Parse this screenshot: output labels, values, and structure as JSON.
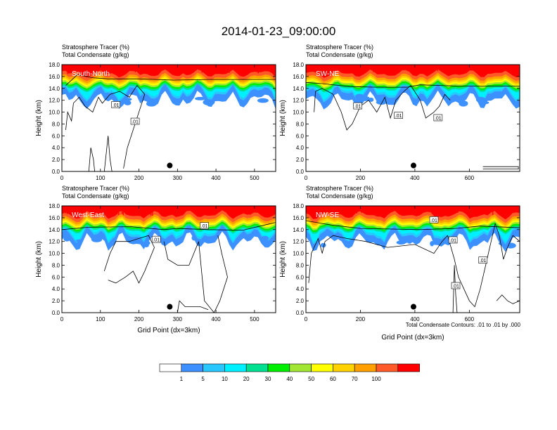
{
  "title": "2014-01-23_09:00:00",
  "colors": {
    "levels": [
      "#ffffff",
      "#3c90ff",
      "#28c8ff",
      "#00f0ff",
      "#00e090",
      "#00ef00",
      "#a0e632",
      "#ffff00",
      "#ffd200",
      "#ffa000",
      "#ff5a28",
      "#ff0000"
    ],
    "contour": "#000000",
    "marker": "#000000"
  },
  "colorbar": {
    "labels": [
      "1",
      "5",
      "10",
      "20",
      "30",
      "40",
      "50",
      "60",
      "70",
      "100"
    ]
  },
  "footer_note": "Total Condensate Contours: .01 to .01 by .000",
  "chart_data": [
    {
      "type": "contour",
      "panel_label": "South-North",
      "title_line1": "Stratosphere Tracer   (%)",
      "title_line2": "Total Condensate   (g/kg)",
      "ylabel": "Height (km)",
      "xlabel": "",
      "xlim": [
        0,
        555
      ],
      "ylim": [
        0,
        18
      ],
      "xticks": [
        "0",
        "100",
        "200",
        "300",
        "400",
        "500"
      ],
      "yticks": [
        "0.0",
        "2.0",
        "4.0",
        "6.0",
        "8.0",
        "10.0",
        "12.0",
        "14.0",
        "16.0",
        "18.0"
      ],
      "contour_labels": [
        ".01",
        ".01"
      ],
      "marker_x": 280,
      "marker_y": 1.0
    },
    {
      "type": "contour",
      "panel_label": "SW-NE",
      "title_line1": "Stratosphere Tracer   (%)",
      "title_line2": "Total Condensate   (g/kg)",
      "ylabel": "Height (km)",
      "xlabel": "",
      "xlim": [
        0,
        785
      ],
      "ylim": [
        0,
        18
      ],
      "xticks": [
        "0",
        "200",
        "400",
        "600"
      ],
      "yticks": [
        "0.0",
        "2.0",
        "4.0",
        "6.0",
        "8.0",
        "10.0",
        "12.0",
        "14.0",
        "16.0",
        "18.0"
      ],
      "contour_labels": [
        ".01",
        ".01",
        ".01"
      ],
      "marker_x": 395,
      "marker_y": 1.0
    },
    {
      "type": "contour",
      "panel_label": "West-East",
      "title_line1": "Stratosphere Tracer   (%)",
      "title_line2": "Total Condensate   (g/kg)",
      "ylabel": "Height (km)",
      "xlabel": "Grid Point (dx=3km)",
      "xlim": [
        0,
        555
      ],
      "ylim": [
        0,
        18
      ],
      "xticks": [
        "0",
        "100",
        "200",
        "300",
        "400",
        "500"
      ],
      "yticks": [
        "0.0",
        "2.0",
        "4.0",
        "6.0",
        "8.0",
        "10.0",
        "12.0",
        "14.0",
        "16.0",
        "18.0"
      ],
      "contour_labels": [
        ".01",
        ".01"
      ],
      "marker_x": 280,
      "marker_y": 1.0
    },
    {
      "type": "contour",
      "panel_label": "NW-SE",
      "title_line1": "Stratosphere Tracer   (%)",
      "title_line2": "Total Condensate   (g/kg)",
      "ylabel": "Height (km)",
      "xlabel": "Grid Point (dx=3km)",
      "xlim": [
        0,
        785
      ],
      "ylim": [
        0,
        18
      ],
      "xticks": [
        "0",
        "200",
        "400",
        "600"
      ],
      "yticks": [
        "0.0",
        "2.0",
        "4.0",
        "6.0",
        "8.0",
        "10.0",
        "12.0",
        "14.0",
        "16.0",
        "18.0"
      ],
      "contour_labels": [
        ".01",
        ".01",
        ".01",
        ".01"
      ],
      "marker_x": 395,
      "marker_y": 1.0
    }
  ]
}
